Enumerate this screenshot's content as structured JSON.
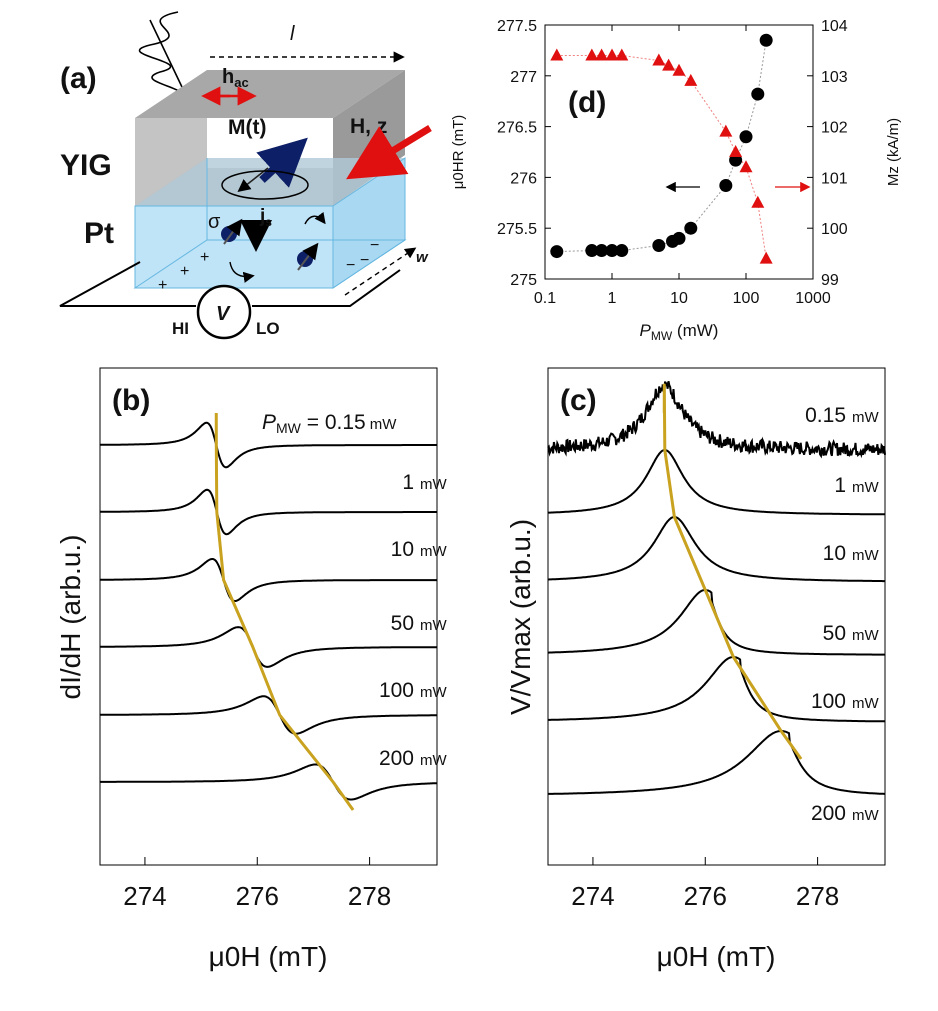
{
  "colors": {
    "curve_color": "#c9a21f",
    "red": "#e01010",
    "navy": "#0d1f66",
    "pt_fill": "#bfe3f7",
    "yig_dark": "#8c8c8c",
    "yig_light": "#bdbdbd"
  },
  "panel_a": {
    "label": "(a)",
    "yig": "YIG",
    "pt": "Pt",
    "l_label": "l",
    "hac_main": "h",
    "hac_sub": "ac",
    "m_label": "M(t)",
    "h_label": "H, z",
    "sigma": "σ",
    "js_main": "j",
    "js_sub": "s",
    "w_label": "w",
    "v_label": "V",
    "hi": "HI",
    "lo": "LO",
    "plus": "+",
    "minus": "−"
  },
  "chart_data": [
    {
      "id": "panel-d",
      "type": "scatter",
      "title": "(d)",
      "xscale": "log",
      "xlim": [
        0.1,
        1000
      ],
      "xticks": [
        "0.1",
        "1",
        "10",
        "100",
        "1000"
      ],
      "xlabel_main": "P",
      "xlabel_sub": "MW",
      "xlabel_unit": " (mW)",
      "ylim_left": [
        275,
        277.5
      ],
      "yticks_left": [
        "275",
        "275.5",
        "276",
        "276.5",
        "277",
        "277.5"
      ],
      "ylabel_left": "μ0HR (mT)",
      "ylim_right": [
        99,
        104
      ],
      "yticks_right": [
        "99",
        "100",
        "101",
        "102",
        "103",
        "104"
      ],
      "ylabel_right": "Mz (kA/m)",
      "series": [
        {
          "name": "μ0HR",
          "axis": "left",
          "marker": "circle",
          "color": "#000000",
          "x": [
            0.15,
            0.5,
            0.7,
            1,
            1.4,
            5,
            8,
            10,
            15,
            50,
            70,
            100,
            150,
            200
          ],
          "y": [
            275.27,
            275.28,
            275.28,
            275.28,
            275.28,
            275.33,
            275.37,
            275.4,
            275.5,
            275.92,
            276.17,
            276.4,
            276.82,
            277.35
          ]
        },
        {
          "name": "Mz",
          "axis": "right",
          "marker": "triangle",
          "color": "#e01010",
          "x": [
            0.15,
            0.5,
            0.7,
            1,
            1.4,
            5,
            7,
            10,
            15,
            50,
            70,
            100,
            150,
            200
          ],
          "y": [
            103.4,
            103.4,
            103.4,
            103.4,
            103.4,
            103.3,
            103.2,
            103.1,
            102.9,
            101.9,
            101.5,
            101.2,
            100.5,
            99.4
          ]
        }
      ]
    },
    {
      "id": "panel-b",
      "type": "line",
      "title": "(b)",
      "xlim": [
        273.2,
        279.2
      ],
      "xticks": [
        "274",
        "276",
        "278"
      ],
      "xlabel": "μ0H (mT)",
      "ylabel": "dI/dH (arb.u.)",
      "legend_prefix": "P",
      "legend_sub": "MW",
      "legend_eq": " = 0.15",
      "unit": "mW",
      "series": [
        {
          "name": "0.15 mW",
          "label": "0.15",
          "center": 275.27,
          "width": 0.3,
          "amp": 0.95
        },
        {
          "name": "1 mW",
          "label": "1",
          "center": 275.28,
          "width": 0.3,
          "amp": 0.95
        },
        {
          "name": "10 mW",
          "label": "10",
          "center": 275.4,
          "width": 0.35,
          "amp": 0.9
        },
        {
          "name": "50 mW",
          "label": "50",
          "center": 275.92,
          "width": 0.45,
          "amp": 0.85
        },
        {
          "name": "100 mW",
          "label": "100",
          "center": 276.4,
          "width": 0.5,
          "amp": 0.8
        },
        {
          "name": "200 mW",
          "label": "200",
          "center": 277.35,
          "width": 0.55,
          "amp": 0.75
        }
      ]
    },
    {
      "id": "panel-c",
      "type": "line",
      "title": "(c)",
      "xlim": [
        273.2,
        279.2
      ],
      "xticks": [
        "274",
        "276",
        "278"
      ],
      "xlabel": "μ0H (mT)",
      "ylabel": "V/Vmax (arb.u.)",
      "unit": "mW",
      "series": [
        {
          "name": "0.15 mW",
          "label": "0.15",
          "center": 275.27,
          "width": 0.4,
          "noisy": true
        },
        {
          "name": "1 mW",
          "label": "1",
          "center": 275.28,
          "width": 0.4
        },
        {
          "name": "10 mW",
          "label": "10",
          "center": 275.45,
          "width": 0.45
        },
        {
          "name": "50 mW",
          "label": "50",
          "center": 276.0,
          "width": 0.55
        },
        {
          "name": "100 mW",
          "label": "100",
          "center": 276.5,
          "width": 0.6
        },
        {
          "name": "200 mW",
          "label": "200",
          "center": 277.35,
          "width": 0.75
        }
      ]
    }
  ]
}
